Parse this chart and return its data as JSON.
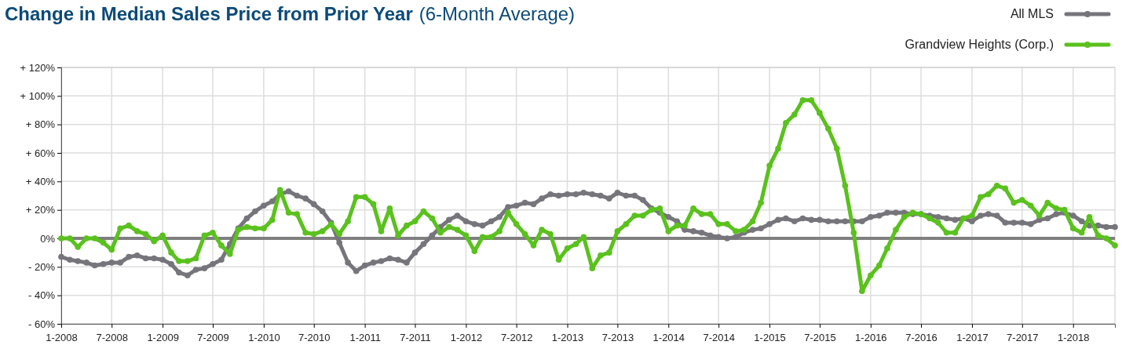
{
  "chart_data": {
    "type": "line",
    "title": "Change in Median Sales Price from Prior Year",
    "subtitle": "(6-Month Average)",
    "x": [
      "2008-01",
      "2008-02",
      "2008-03",
      "2008-04",
      "2008-05",
      "2008-06",
      "2008-07",
      "2008-08",
      "2008-09",
      "2008-10",
      "2008-11",
      "2008-12",
      "2009-01",
      "2009-02",
      "2009-03",
      "2009-04",
      "2009-05",
      "2009-06",
      "2009-07",
      "2009-08",
      "2009-09",
      "2009-10",
      "2009-11",
      "2009-12",
      "2010-01",
      "2010-02",
      "2010-03",
      "2010-04",
      "2010-05",
      "2010-06",
      "2010-07",
      "2010-08",
      "2010-09",
      "2010-10",
      "2010-11",
      "2010-12",
      "2011-01",
      "2011-02",
      "2011-03",
      "2011-04",
      "2011-05",
      "2011-06",
      "2011-07",
      "2011-08",
      "2011-09",
      "2011-10",
      "2011-11",
      "2011-12",
      "2012-01",
      "2012-02",
      "2012-03",
      "2012-04",
      "2012-05",
      "2012-06",
      "2012-07",
      "2012-08",
      "2012-09",
      "2012-10",
      "2012-11",
      "2012-12",
      "2013-01",
      "2013-02",
      "2013-03",
      "2013-04",
      "2013-05",
      "2013-06",
      "2013-07",
      "2013-08",
      "2013-09",
      "2013-10",
      "2013-11",
      "2013-12",
      "2014-01",
      "2014-02",
      "2014-03",
      "2014-04",
      "2014-05",
      "2014-06",
      "2014-07",
      "2014-08",
      "2014-09",
      "2014-10",
      "2014-11",
      "2014-12",
      "2015-01",
      "2015-02",
      "2015-03",
      "2015-04",
      "2015-05",
      "2015-06",
      "2015-07",
      "2015-08",
      "2015-09",
      "2015-10",
      "2015-11",
      "2015-12",
      "2016-01",
      "2016-02",
      "2016-03",
      "2016-04",
      "2016-05",
      "2016-06",
      "2016-07",
      "2016-08",
      "2016-09",
      "2016-10",
      "2016-11",
      "2016-12",
      "2017-01",
      "2017-02",
      "2017-03",
      "2017-04",
      "2017-05",
      "2017-06",
      "2017-07",
      "2017-08",
      "2017-09",
      "2017-10",
      "2017-11",
      "2017-12",
      "2018-01",
      "2018-02",
      "2018-03",
      "2018-04",
      "2018-05",
      "2018-06"
    ],
    "series": [
      {
        "name": "All MLS",
        "color": "#76757b",
        "values": [
          -13,
          -15,
          -16,
          -17,
          -19,
          -18,
          -17,
          -17,
          -13,
          -12,
          -14,
          -14,
          -15,
          -18,
          -24,
          -26,
          -22,
          -21,
          -18,
          -15,
          -4,
          7,
          14,
          19,
          23,
          26,
          31,
          33,
          30,
          28,
          24,
          19,
          11,
          -3,
          -17,
          -23,
          -19,
          -17,
          -16,
          -14,
          -15,
          -17,
          -10,
          -4,
          2,
          8,
          13,
          16,
          12,
          10,
          9,
          12,
          15,
          22,
          23,
          25,
          24,
          28,
          31,
          30,
          31,
          31,
          32,
          31,
          30,
          28,
          32,
          30,
          30,
          27,
          21,
          18,
          15,
          12,
          6,
          5,
          4,
          2,
          1,
          0,
          1,
          4,
          6,
          7,
          10,
          13,
          14,
          12,
          14,
          13,
          13,
          12,
          12,
          12,
          12,
          12,
          15,
          16,
          18,
          18,
          18,
          17,
          17,
          16,
          15,
          14,
          13,
          14,
          12,
          16,
          17,
          16,
          11,
          11,
          11,
          10,
          13,
          14,
          17,
          18,
          16,
          12,
          9,
          9,
          8,
          8
        ]
      },
      {
        "name": "Grandview Heights (Corp.)",
        "color": "#5ac11e",
        "values": [
          0,
          0,
          -6,
          0,
          0,
          -3,
          -8,
          7,
          9,
          5,
          3,
          -2,
          2,
          -10,
          -16,
          -16,
          -14,
          2,
          4,
          -5,
          -11,
          6,
          8,
          7,
          7,
          13,
          34,
          18,
          17,
          4,
          3,
          5,
          10,
          3,
          12,
          29,
          29,
          24,
          5,
          21,
          2,
          9,
          12,
          19,
          14,
          4,
          8,
          6,
          2,
          -9,
          1,
          1,
          5,
          18,
          10,
          3,
          -5,
          6,
          3,
          -15,
          -7,
          -4,
          1,
          -21,
          -12,
          -10,
          5,
          10,
          16,
          16,
          20,
          21,
          5,
          9,
          9,
          21,
          17,
          17,
          10,
          10,
          5,
          6,
          12,
          25,
          51,
          63,
          81,
          87,
          97,
          97,
          88,
          77,
          63,
          37,
          4,
          -37,
          -26,
          -19,
          -7,
          6,
          15,
          18,
          17,
          14,
          11,
          4,
          4,
          14,
          16,
          29,
          31,
          37,
          35,
          25,
          27,
          23,
          16,
          25,
          21,
          20,
          7,
          4,
          15,
          2,
          0,
          -5
        ]
      }
    ],
    "xlim": [
      "2008-01",
      "2018-06"
    ],
    "xticks": [
      {
        "value": "2008-01",
        "label": "1-2008"
      },
      {
        "value": "2008-07",
        "label": "7-2008"
      },
      {
        "value": "2009-01",
        "label": "1-2009"
      },
      {
        "value": "2009-07",
        "label": "7-2009"
      },
      {
        "value": "2010-01",
        "label": "1-2010"
      },
      {
        "value": "2010-07",
        "label": "7-2010"
      },
      {
        "value": "2011-01",
        "label": "1-2011"
      },
      {
        "value": "2011-07",
        "label": "7-2011"
      },
      {
        "value": "2012-01",
        "label": "1-2012"
      },
      {
        "value": "2012-07",
        "label": "7-2012"
      },
      {
        "value": "2013-01",
        "label": "1-2013"
      },
      {
        "value": "2013-07",
        "label": "7-2013"
      },
      {
        "value": "2014-01",
        "label": "1-2014"
      },
      {
        "value": "2014-07",
        "label": "7-2014"
      },
      {
        "value": "2015-01",
        "label": "1-2015"
      },
      {
        "value": "2015-07",
        "label": "7-2015"
      },
      {
        "value": "2016-01",
        "label": "1-2016"
      },
      {
        "value": "2016-07",
        "label": "7-2016"
      },
      {
        "value": "2017-01",
        "label": "1-2017"
      },
      {
        "value": "2017-07",
        "label": "7-2017"
      },
      {
        "value": "2018-01",
        "label": "1-2018"
      }
    ],
    "ylim": [
      -60,
      120
    ],
    "yticks": [
      {
        "value": -60,
        "label": "- 60%"
      },
      {
        "value": -40,
        "label": "- 40%"
      },
      {
        "value": -20,
        "label": "- 20%"
      },
      {
        "value": 0,
        "label": "0%"
      },
      {
        "value": 20,
        "label": "+ 20%"
      },
      {
        "value": 40,
        "label": "+ 40%"
      },
      {
        "value": 60,
        "label": "+ 60%"
      },
      {
        "value": 80,
        "label": "+ 80%"
      },
      {
        "value": 100,
        "label": "+ 100%"
      },
      {
        "value": 120,
        "label": "+ 120%"
      }
    ],
    "ref_lines": [
      {
        "axis": "y",
        "value": 0,
        "color": "#7f7f7f"
      }
    ],
    "grid": true,
    "legend": "top right",
    "marker": "circle",
    "line_style": "solid"
  }
}
